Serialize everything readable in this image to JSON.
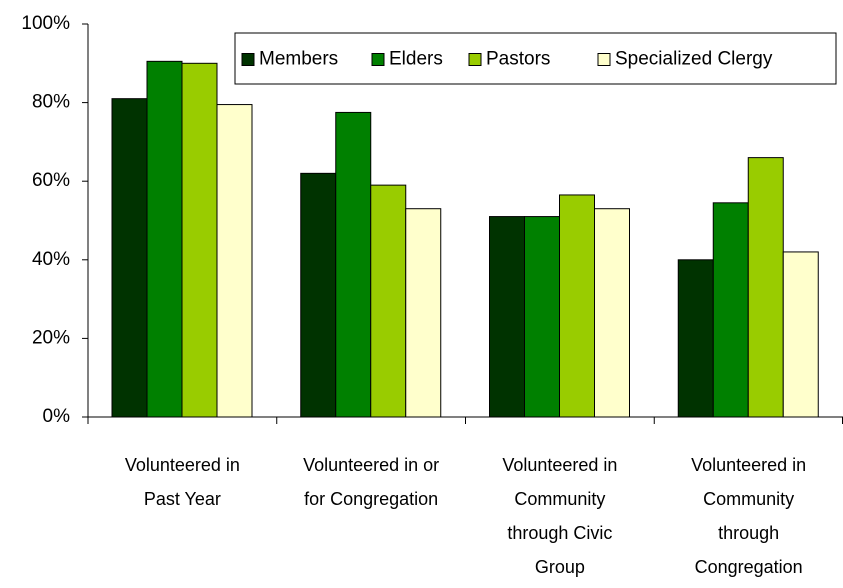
{
  "chart_data": {
    "type": "bar",
    "categories": [
      "Volunteered in Past Year",
      "Volunteered in or for Congregation",
      "Volunteered in Community through Civic Group",
      "Volunteered in Community through Congregation"
    ],
    "series": [
      {
        "name": "Members",
        "color": "#003300",
        "values": [
          81,
          62,
          51,
          40
        ]
      },
      {
        "name": "Elders",
        "color": "#008000",
        "values": [
          90.5,
          77.5,
          51,
          54.5
        ]
      },
      {
        "name": "Pastors",
        "color": "#99cc00",
        "values": [
          90,
          59,
          56.5,
          66
        ]
      },
      {
        "name": "Specialized Clergy",
        "color": "#ffffcc",
        "values": [
          79.5,
          53,
          53,
          42
        ]
      }
    ],
    "ylim": [
      0,
      100
    ],
    "yticks": [
      {
        "value": 0,
        "label": "0%"
      },
      {
        "value": 20,
        "label": "20%"
      },
      {
        "value": 40,
        "label": "40%"
      },
      {
        "value": 60,
        "label": "60%"
      },
      {
        "value": 80,
        "label": "80%"
      },
      {
        "value": 100,
        "label": "100%"
      }
    ],
    "grid": false,
    "legend": "top-right"
  }
}
